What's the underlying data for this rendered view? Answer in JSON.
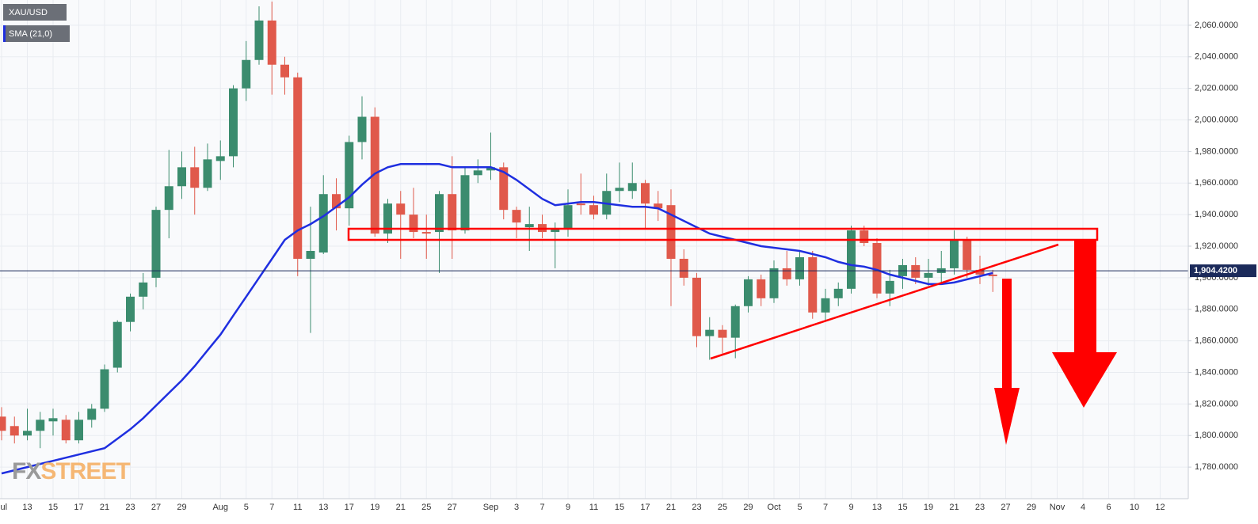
{
  "chart_data": {
    "type": "candlestick",
    "watermark": [
      "FX",
      "STREET"
    ],
    "categories": [
      "Jul",
      null,
      "13",
      null,
      "15",
      null,
      "17",
      null,
      "21",
      null,
      "23",
      null,
      "27",
      null,
      "29",
      null,
      null,
      "Aug",
      null,
      "5",
      null,
      "7",
      null,
      "11",
      null,
      "13",
      null,
      "17",
      null,
      "19",
      null,
      "21",
      null,
      "25",
      null,
      "27",
      null,
      null,
      "Sep",
      null,
      "3",
      null,
      "7",
      null,
      "9",
      null,
      "11",
      null,
      "15",
      null,
      "17",
      null,
      "21",
      null,
      "23",
      null,
      "25",
      null,
      "29",
      null,
      "Oct",
      null,
      "5",
      null,
      "7",
      null,
      "9",
      null,
      "13",
      null,
      "15",
      null,
      "19",
      null,
      "21",
      null,
      "23",
      null,
      "27",
      null,
      "29",
      null,
      "Nov",
      null,
      "4",
      null,
      "6",
      null,
      "10",
      null,
      "12"
    ],
    "series": [
      {
        "name": "XAU/USD",
        "color_up": "#3b8c6e",
        "color_down": "#e0594b",
        "open": [
          1812,
          1806,
          1800,
          1803,
          1809,
          1810,
          1797,
          1810,
          1817,
          1843,
          1872,
          1888,
          1900,
          1943,
          1958,
          1970,
          1957,
          1974,
          1977,
          2020,
          2038,
          2063,
          2035,
          2027,
          1912,
          1916,
          1953,
          1944,
          1986,
          2002,
          1928,
          1947,
          1940,
          1929,
          1929,
          1953,
          1930,
          1965,
          1968,
          1970,
          1943,
          1932,
          1934,
          1929,
          1931,
          1947,
          1946,
          1940,
          1955,
          1955,
          1960,
          1947,
          1946,
          1912,
          1900,
          1863,
          1867,
          1862,
          1882,
          1899,
          1887,
          1906,
          1899,
          1913,
          1878,
          1887,
          1893,
          1930,
          1922,
          1890,
          1901,
          1908,
          1900,
          1903,
          1906,
          1924,
          1905,
          1902,
          null,
          null,
          null,
          null,
          null,
          null,
          null,
          null,
          null,
          null,
          null,
          null,
          null
        ],
        "high": [
          1818,
          1812,
          1817,
          1815,
          1817,
          1813,
          1815,
          1820,
          1845,
          1873,
          1890,
          1903,
          1945,
          1981,
          1980,
          1983,
          1985,
          1987,
          2022,
          2050,
          2072,
          2075,
          2040,
          2030,
          1945,
          1965,
          1963,
          1990,
          2015,
          2008,
          1950,
          1955,
          1957,
          1940,
          1955,
          1977,
          1970,
          1975,
          1992,
          1973,
          1945,
          1945,
          1940,
          1935,
          1956,
          1966,
          1952,
          1966,
          1973,
          1973,
          1962,
          1955,
          1956,
          1918,
          1903,
          1875,
          1870,
          1883,
          1901,
          1902,
          1911,
          1917,
          1917,
          1917,
          1893,
          1897,
          1933,
          1933,
          1925,
          1905,
          1912,
          1913,
          1912,
          1917,
          1930,
          1926,
          1914,
          1905,
          null,
          null,
          null,
          null,
          null,
          null,
          null,
          null,
          null,
          null,
          null,
          null,
          null
        ],
        "low": [
          1797,
          1795,
          1797,
          1792,
          1800,
          1795,
          1795,
          1805,
          1815,
          1840,
          1866,
          1880,
          1894,
          1925,
          1950,
          1940,
          1955,
          1962,
          1970,
          2012,
          2035,
          2016,
          2016,
          1901,
          1865,
          1915,
          1930,
          1933,
          1975,
          1926,
          1922,
          1912,
          1925,
          1912,
          1903,
          1912,
          1928,
          1960,
          1962,
          1937,
          1925,
          1917,
          1925,
          1906,
          1926,
          1940,
          1937,
          1937,
          1948,
          1950,
          1931,
          1936,
          1882,
          1895,
          1856,
          1848,
          1852,
          1849,
          1878,
          1882,
          1884,
          1895,
          1895,
          1874,
          1873,
          1882,
          1890,
          1920,
          1887,
          1882,
          1893,
          1896,
          1895,
          1897,
          1902,
          1900,
          1896,
          1891,
          null,
          null,
          null,
          null,
          null,
          null,
          null,
          null,
          null,
          null,
          null,
          null,
          null
        ],
        "close": [
          1803,
          1800,
          1803,
          1810,
          1811,
          1797,
          1810,
          1817,
          1842,
          1872,
          1888,
          1897,
          1943,
          1958,
          1970,
          1957,
          1975,
          1977,
          2020,
          2038,
          2063,
          2035,
          2027,
          1912,
          1917,
          1953,
          1944,
          1986,
          2002,
          1928,
          1947,
          1940,
          1929,
          1928,
          1953,
          1930,
          1965,
          1968,
          1970,
          1943,
          1935,
          1934,
          1929,
          1931,
          1946,
          1946,
          1940,
          1955,
          1957,
          1960,
          1947,
          1944,
          1912,
          1900,
          1863,
          1867,
          1862,
          1882,
          1899,
          1887,
          1906,
          1899,
          1913,
          1878,
          1887,
          1893,
          1930,
          1922,
          1890,
          1898,
          1908,
          1900,
          1903,
          1906,
          1924,
          1905,
          1902,
          1901,
          null,
          null,
          null,
          null,
          null,
          null,
          null,
          null,
          null,
          null,
          null,
          null,
          null
        ]
      },
      {
        "name": "SMA (21,0)",
        "color": "#1f2fe0",
        "values": [
          1776,
          1778,
          1780,
          1782,
          1784,
          1786,
          1788,
          1790,
          1792,
          1798,
          1804,
          1811,
          1819,
          1827,
          1835,
          1844,
          1854,
          1864,
          1876,
          1888,
          1900,
          1912,
          1924,
          1930,
          1934,
          1939,
          1945,
          1951,
          1959,
          1966,
          1970,
          1972,
          1972,
          1972,
          1972,
          1970,
          1970,
          1970,
          1970,
          1967,
          1962,
          1956,
          1950,
          1946,
          1947,
          1948,
          1948,
          1947,
          1946,
          1945,
          1945,
          1944,
          1940,
          1936,
          1932,
          1928,
          1926,
          1924,
          1922,
          1920,
          1919,
          1918,
          1917,
          1915,
          1913,
          1910,
          1908,
          1907,
          1905,
          1902,
          1900,
          1898,
          1896,
          1896,
          1897,
          1899,
          1901,
          1903,
          null,
          null,
          null,
          null,
          null,
          null,
          null,
          null,
          null,
          null,
          null,
          null,
          null
        ]
      }
    ],
    "last_price": {
      "value": 1904.42,
      "label": "1,904.4200"
    },
    "ylim": [
      1760,
      2076
    ],
    "yticks": [
      {
        "value": 1780,
        "label": "1,780.0000"
      },
      {
        "value": 1800,
        "label": "1,800.0000"
      },
      {
        "value": 1820,
        "label": "1,820.0000"
      },
      {
        "value": 1840,
        "label": "1,840.0000"
      },
      {
        "value": 1860,
        "label": "1,860.0000"
      },
      {
        "value": 1880,
        "label": "1,880.0000"
      },
      {
        "value": 1900,
        "label": "1,900.0000"
      },
      {
        "value": 1920,
        "label": "1,920.0000"
      },
      {
        "value": 1940,
        "label": "1,940.0000"
      },
      {
        "value": 1960,
        "label": "1,960.0000"
      },
      {
        "value": 1980,
        "label": "1,980.0000"
      },
      {
        "value": 2000,
        "label": "2,000.0000"
      },
      {
        "value": 2020,
        "label": "2,020.0000"
      },
      {
        "value": 2040,
        "label": "2,040.0000"
      },
      {
        "value": 2060,
        "label": "2,060.0000"
      }
    ],
    "grid": true
  }
}
